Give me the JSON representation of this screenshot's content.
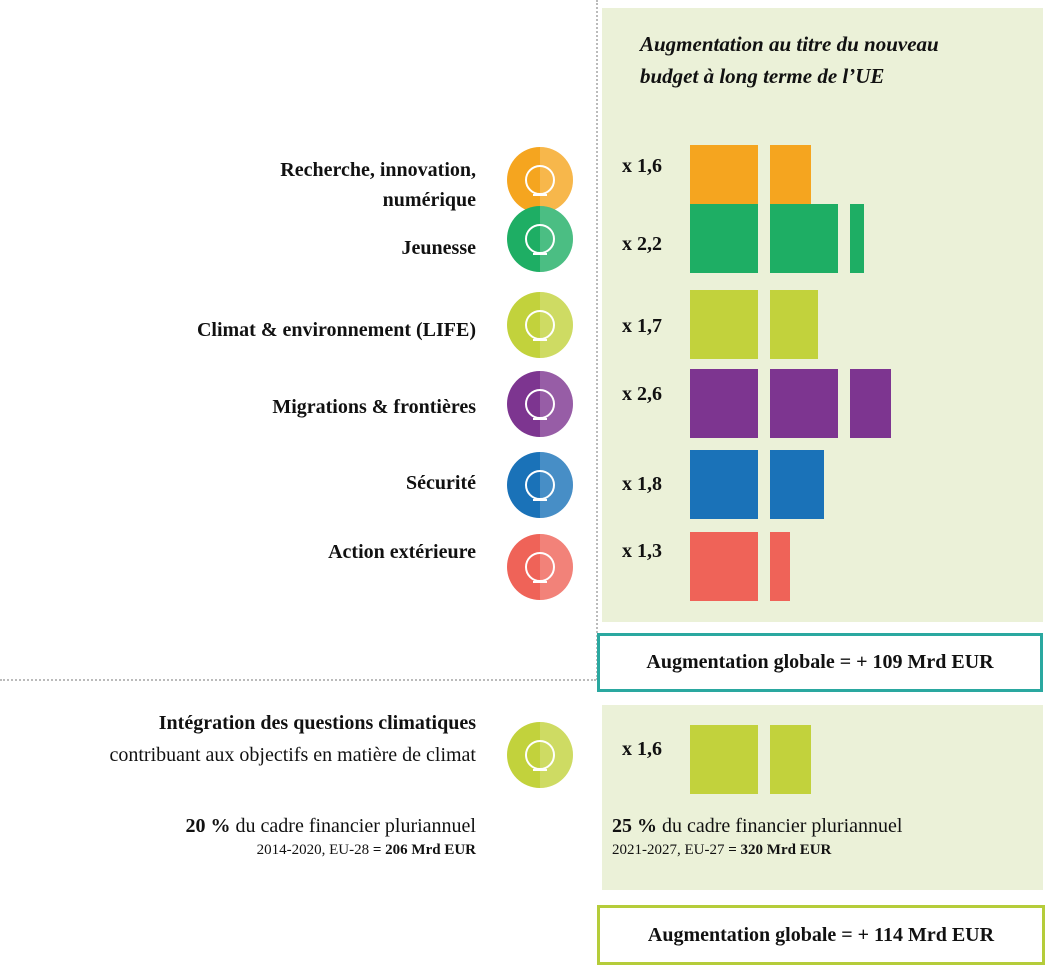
{
  "chart_data": {
    "type": "bar",
    "title": "Augmentation au titre du nouveau budget à long terme de l’UE",
    "categories": [
      "Recherche, innovation, numérique",
      "Jeunesse",
      "Climat & environnement (LIFE)",
      "Migrations & frontières",
      "Sécurité",
      "Action extérieure"
    ],
    "values": [
      1.6,
      2.2,
      1.7,
      2.6,
      1.8,
      1.3
    ],
    "value_labels": [
      "x 1,6",
      "x 2,2",
      "x 1,7",
      "x 2,6",
      "x 1,8",
      "x 1,3"
    ],
    "colors": [
      "#f5a51f",
      "#1eae64",
      "#c2d23c",
      "#7d3590",
      "#1a72b8",
      "#ef6358"
    ],
    "total": "Augmentation globale = + 109 Mrd EUR"
  },
  "climate": {
    "label_bold": "Intégration des questions climatiques",
    "label_rest": "contribuant aux objectifs en matière de climat",
    "value": 1.6,
    "value_label": "x 1,6",
    "color": "#c2d23c",
    "before": {
      "share": "20 %",
      "text": " du cadre financier pluriannuel",
      "period": "2014-2020, EU-28 ",
      "amount": "= 206 Mrd EUR"
    },
    "after": {
      "share": "25 %",
      "text": " du cadre financier pluriannuel",
      "period": "2021-2027, EU-27 ",
      "amount": "= 320 Mrd EUR"
    },
    "total": "Augmentation globale = + 114 Mrd EUR"
  }
}
